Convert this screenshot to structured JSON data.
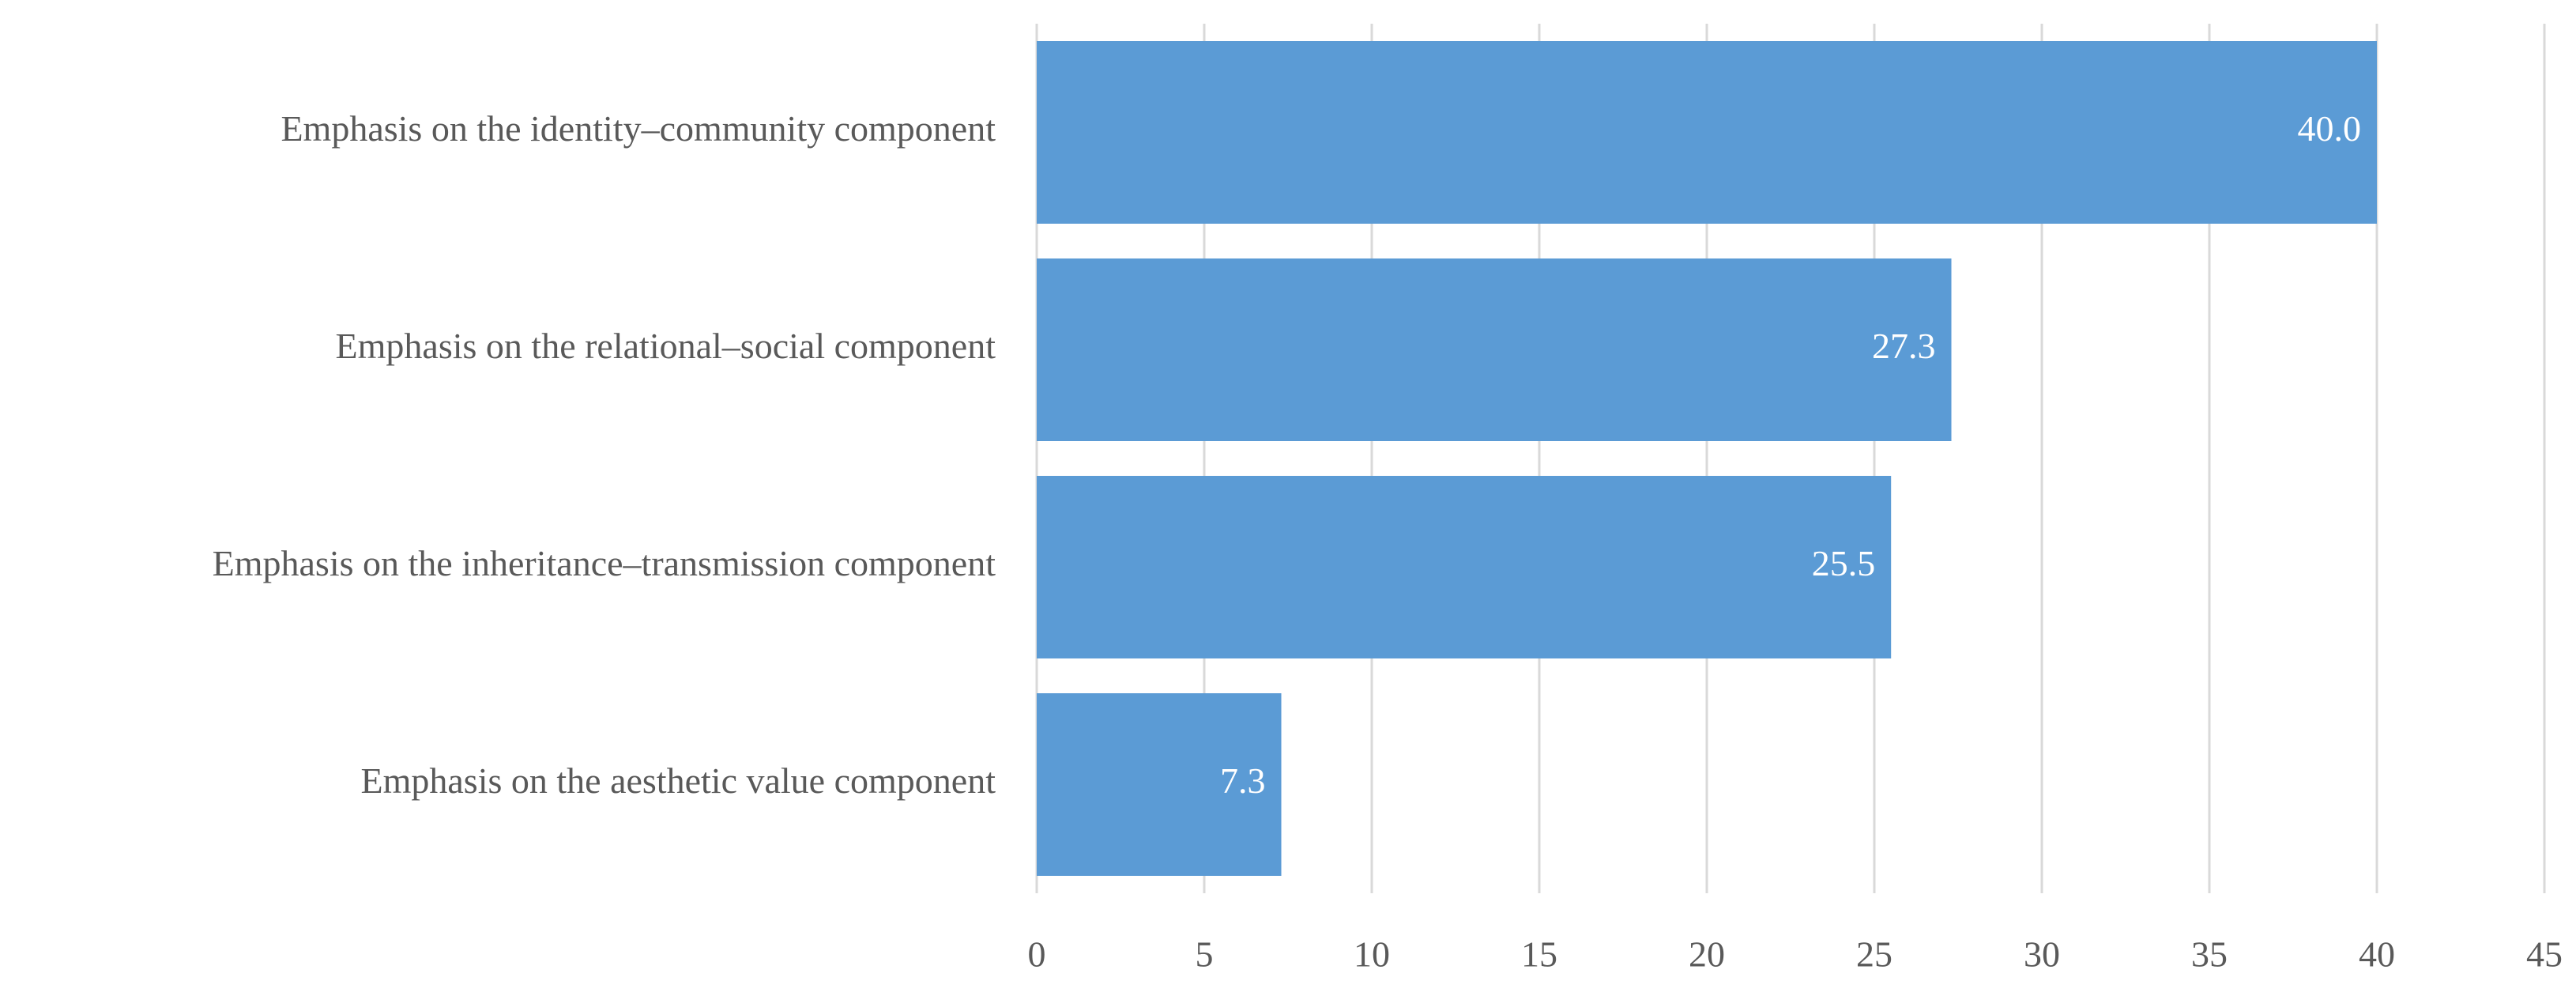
{
  "chart_data": {
    "type": "hbar",
    "categories": [
      "Emphasis on the identity–community component",
      "Emphasis on the relational–social component",
      "Emphasis on the inheritance–transmission component",
      "Emphasis on the aesthetic value component"
    ],
    "values": [
      40.0,
      27.3,
      25.5,
      7.3
    ],
    "value_labels": [
      "40.0",
      "27.3",
      "25.5",
      "7.3"
    ],
    "color": "#5b9bd5",
    "xlim": [
      0,
      45
    ],
    "xticks": [
      0,
      5,
      10,
      15,
      20,
      25,
      30,
      35,
      40,
      45
    ],
    "grid": true
  }
}
